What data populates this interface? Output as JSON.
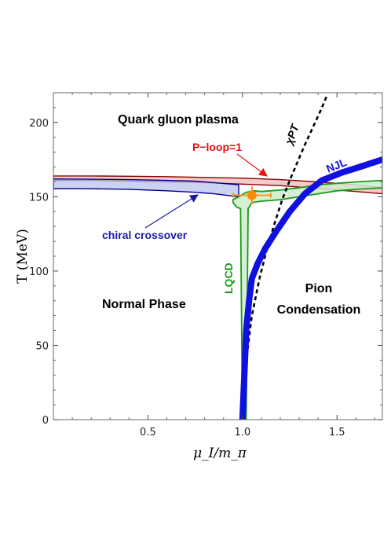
{
  "chart_data": {
    "type": "line",
    "xlabel": "μ_I/m_π",
    "ylabel": "T (MeV)",
    "xlim": [
      0.0,
      1.74
    ],
    "ylim": [
      0,
      220
    ],
    "x_ticks": [
      0.5,
      1.0,
      1.5
    ],
    "y_ticks": [
      0,
      50,
      100,
      150,
      200
    ],
    "colors": {
      "njl": "#1010e0",
      "chpt": "#000000",
      "lqcd_edge": "#1a9a1a",
      "lqcd_fill": "#cdeccd",
      "ploop_edge": "#8b0000",
      "ploop_fill": "#f0b8b8",
      "chiral_edge": "#00008b",
      "chiral_fill": "#b8c4ee",
      "point": "#ff8c00",
      "arrow_ploop": "#ee1111",
      "arrow_chiral": "#1a1aaa"
    },
    "regions": {
      "qgp": "Quark gluon plasma",
      "normal": "Normal Phase",
      "pion_line1": "Pion",
      "pion_line2": "Condensation"
    },
    "labels": {
      "ploop": "P−loop=1",
      "chiral": "chiral crossover",
      "lqcd": "LQCD",
      "chpt": "χPT",
      "njl": "NJL"
    },
    "series": [
      {
        "name": "NJL",
        "x": [
          1.0,
          1.01,
          1.02,
          1.035,
          1.05,
          1.08,
          1.12,
          1.18,
          1.25,
          1.33,
          1.42,
          1.52,
          1.62,
          1.74
        ],
        "y": [
          0,
          30,
          60,
          80,
          95,
          105,
          115,
          127,
          140,
          152,
          161,
          166,
          170,
          175
        ]
      },
      {
        "name": "χPT",
        "x": [
          1.0,
          1.02,
          1.05,
          1.09,
          1.13,
          1.17,
          1.21,
          1.25,
          1.29,
          1.33,
          1.37,
          1.41,
          1.45
        ],
        "y": [
          0,
          40,
          70,
          95,
          115,
          132,
          148,
          161,
          173,
          185,
          196,
          207,
          219
        ]
      },
      {
        "name": "LQCD",
        "upper_x": [
          0.95,
          0.98,
          1.02,
          1.06,
          1.1,
          1.2,
          1.3,
          1.4,
          1.5,
          1.6,
          1.74
        ],
        "upper_y": [
          148,
          150,
          153,
          154,
          153.5,
          154.5,
          156,
          158,
          159,
          160,
          161
        ],
        "lower_x": [
          0.95,
          0.97,
          0.99,
          1.0,
          1.02,
          1.03,
          1.05,
          1.1,
          1.2,
          1.3,
          1.4,
          1.5,
          1.6,
          1.74
        ],
        "lower_y": [
          146,
          143,
          142,
          0,
          0,
          142,
          146,
          147,
          148,
          150,
          152,
          154,
          155,
          156
        ]
      },
      {
        "name": "P-loop=1",
        "x": [
          0.0,
          0.2,
          0.4,
          0.6,
          0.8,
          1.0,
          1.2,
          1.4,
          1.6,
          1.74
        ],
        "upper": [
          164,
          164,
          163.8,
          163.5,
          163,
          162.5,
          161.5,
          160,
          158,
          156
        ],
        "lower": [
          161,
          161,
          160.5,
          160,
          159.5,
          158.5,
          157.5,
          155.5,
          153.5,
          152
        ]
      },
      {
        "name": "chiral crossover",
        "x": [
          0.0,
          0.2,
          0.4,
          0.6,
          0.75,
          0.85,
          0.98
        ],
        "upper": [
          162,
          161.8,
          161.5,
          161,
          160.5,
          159.5,
          158
        ],
        "lower": [
          155.5,
          155.4,
          155,
          154,
          153,
          152,
          150
        ]
      }
    ],
    "point": {
      "x": 1.05,
      "y": 151,
      "xerr": 0.1,
      "yerr": 6
    }
  }
}
